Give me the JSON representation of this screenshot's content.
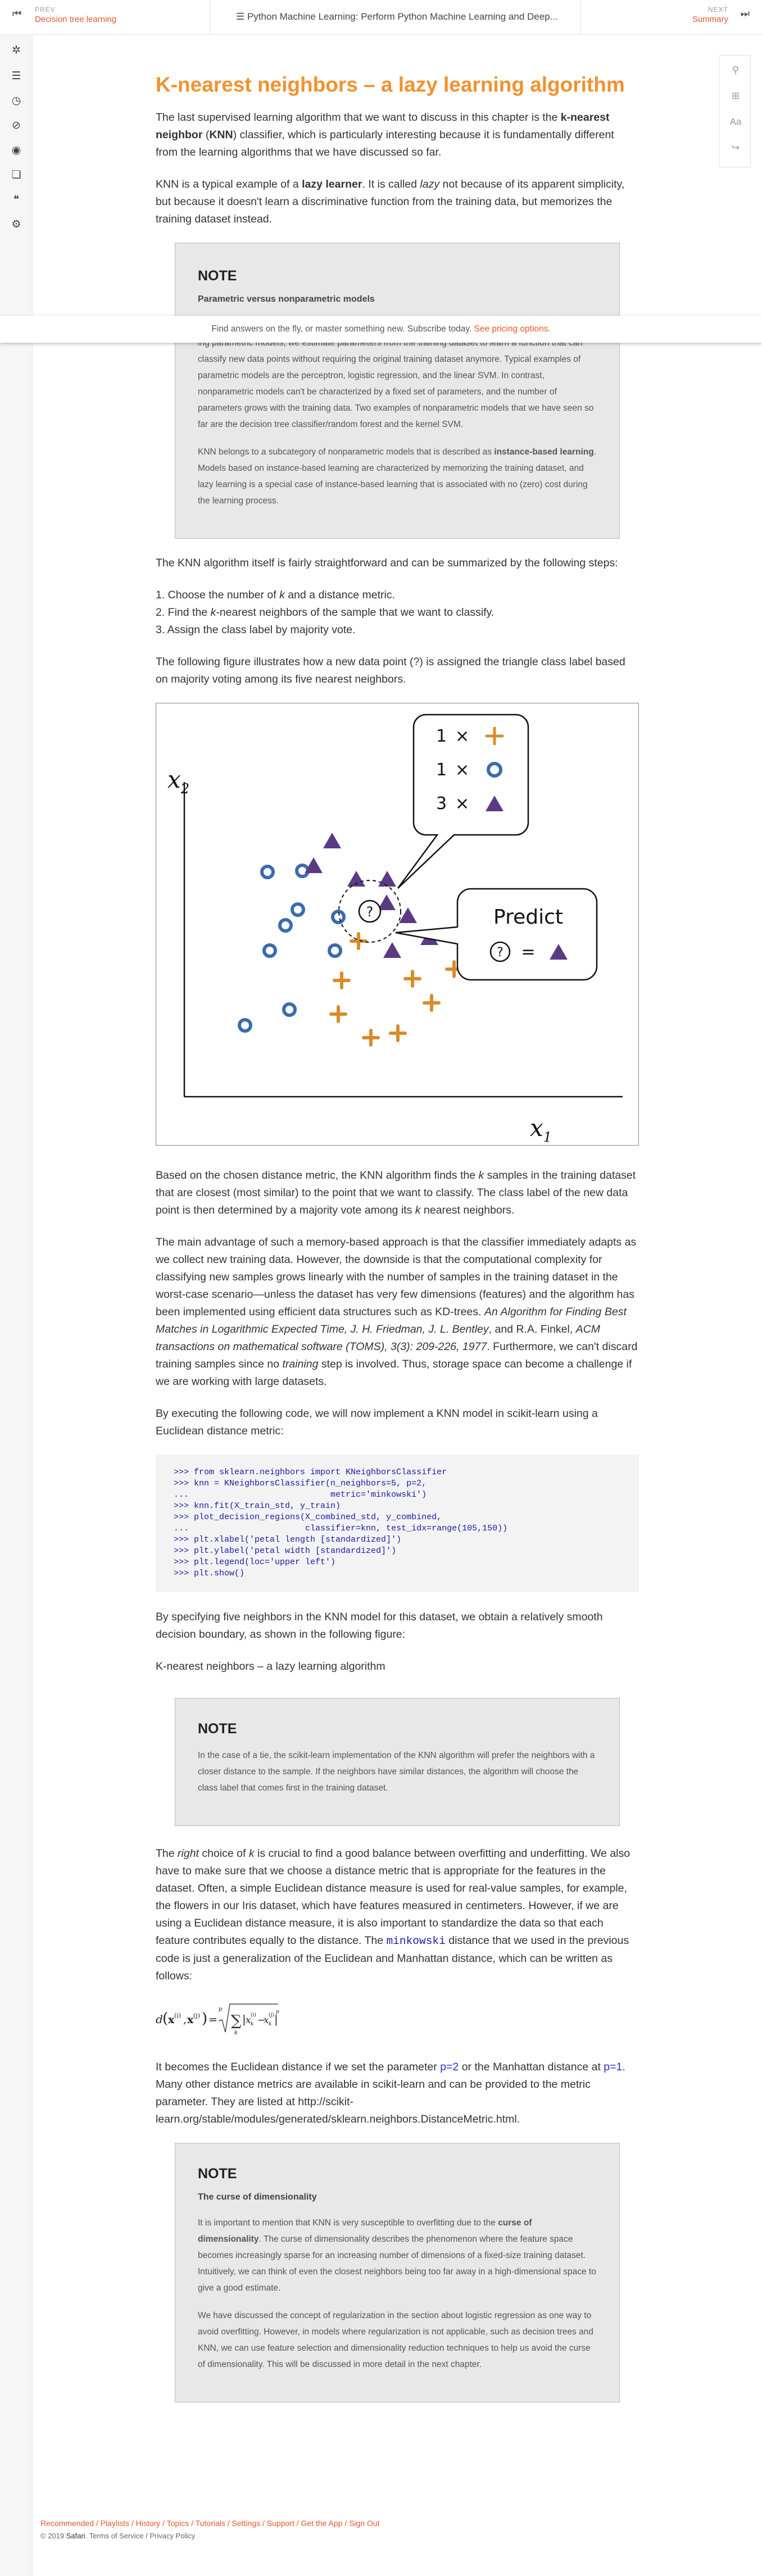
{
  "topbar": {
    "prev_small": "PREV",
    "prev_link": "Decision tree learning",
    "title": "Python Machine Learning: Perform Python Machine Learning and Deep...",
    "next_small": "NEXT",
    "next_link": "Summary"
  },
  "banner": {
    "text": "Find answers on the fly, or master something new. Subscribe today. ",
    "link": "See pricing options."
  },
  "heading": "K-nearest neighbors – a lazy learning algorithm",
  "p1a": "The last supervised learning algorithm that we want to discuss in this chapter is the ",
  "p1b": "k-nearest neighbor",
  "p1c": " (",
  "p1d": "KNN",
  "p1e": ") classifier, which is particularly interesting because it is fundamentally different from the learning algorithms that we have discussed so far.",
  "p2a": "KNN is a typical example of a ",
  "p2b": "lazy learner",
  "p2c": ". It is called ",
  "p2d": "lazy",
  "p2e": " not because of its apparent simplicity, but because it doesn't learn a discriminative function from the training data, but memorizes the training dataset instead.",
  "note1": {
    "title": "NOTE",
    "subtitle": "Parametric versus nonparametric models",
    "p1": "ing parametric models, we estimate parameters from the training dataset to learn a function that can classify new data points without requiring the original training dataset anymore. Typical examples of parametric models are the perceptron, logistic regression, and the linear SVM. In contrast, nonparametric models can't be characterized by a fixed set of parameters, and the number of parameters grows with the training data. Two examples of nonparametric models that we have seen so far are the decision tree classifier/random forest and the kernel SVM.",
    "p2a": "KNN belongs to a subcategory of nonparametric models that is described as ",
    "p2b": "instance-based learning",
    "p2c": ". Models based on instance-based learning are characterized by memorizing the training dataset, and lazy learning is a special case of instance-based learning that is associated with no (zero) cost during the learning process."
  },
  "p3": "The KNN algorithm itself is fairly straightforward and can be summarized by the following steps:",
  "steps": [
    "1. Choose the number of ",
    "k",
    " and a distance metric.",
    "2. Find the ",
    "k",
    "-nearest neighbors of the sample that we want to classify.",
    "3. Assign the class label by majority vote."
  ],
  "p4": "The following figure illustrates how a new data point (?) is assigned the triangle class label based on majority voting among its five nearest neighbors.",
  "figure": {
    "x_label": "x",
    "x_sub": "1",
    "y_label": "x",
    "y_sub": "2",
    "legend": [
      {
        "count": "1",
        "symbol": "cross"
      },
      {
        "count": "1",
        "symbol": "circle"
      },
      {
        "count": "3",
        "symbol": "triangle"
      }
    ],
    "times": "×",
    "predict_title": "Predict",
    "predict_q": "?",
    "predict_eq": "=",
    "query": "?",
    "colors": {
      "circle": "#3b6bb0",
      "triangle": "#5b3a85",
      "cross": "#d98b2b"
    }
  },
  "p5a": "Based on the chosen distance metric, the KNN algorithm finds the ",
  "p5b": "k",
  "p5c": " samples in the training dataset that are closest (most similar) to the point that we want to classify. The class label of the new data point is then determined by a majority vote among its ",
  "p5d": "k",
  "p5e": " nearest neighbors.",
  "p6a": "The main advantage of such a memory-based approach is that the classifier immediately adapts as we collect new training data. However, the downside is that the computational complexity for classifying new samples grows linearly with the number of samples in the training dataset in the worst-case scenario—unless the dataset has very few dimensions (features) and the algorithm has been implemented using efficient data structures such as KD-trees. ",
  "p6b": "An Algorithm for Finding Best Matches in Logarithmic Expected Time, J. H. Friedman, J. L. Bentley",
  "p6c": ", and R.A. Finkel, ",
  "p6d": "ACM transactions on mathematical software (TOMS), 3(3): 209-226, 1977",
  "p6e": ". Furthermore, we can't discard training samples since no ",
  "p6f": "training",
  "p6g": " step is involved. Thus, storage space can become a challenge if we are working with large datasets.",
  "p7": "By executing the following code, we will now implement a KNN model in scikit-learn using a Euclidean distance metric:",
  "code": ">>> from sklearn.neighbors import KNeighborsClassifier\n>>> knn = KNeighborsClassifier(n_neighbors=5, p=2,\n...                            metric='minkowski')\n>>> knn.fit(X_train_std, y_train)\n>>> plot_decision_regions(X_combined_std, y_combined,\n...                       classifier=knn, test_idx=range(105,150))\n>>> plt.xlabel('petal length [standardized]')\n>>> plt.ylabel('petal width [standardized]')\n>>> plt.legend(loc='upper left')\n>>> plt.show()",
  "p8": "By specifying five neighbors in the KNN model for this dataset, we obtain a relatively smooth decision boundary, as shown in the following figure:",
  "p9": "K-nearest neighbors – a lazy learning algorithm",
  "note2": {
    "title": "NOTE",
    "p1": "In the case of a tie, the scikit-learn implementation of the KNN algorithm will prefer the neighbors with a closer distance to the sample. If the neighbors have similar distances, the algorithm will choose the class label that comes first in the training dataset."
  },
  "p10a": "The ",
  "p10b": "right",
  "p10c": " choice of ",
  "p10d": "k",
  "p10e": " is crucial to find a good balance between overfitting and underfitting. We also have to make sure that we choose a distance metric that is appropriate for the features in the dataset. Often, a simple Euclidean distance measure is used for real-value samples, for example, the flowers in our Iris dataset, which have features measured in centimeters. However, if we are using a Euclidean distance measure, it is also important to standardize the data so that each feature contributes equally to the distance. The ",
  "p10f": "minkowski",
  "p10g": " distance that we used in the previous code is just a generalization of the Euclidean and Manhattan distance, which can be written as follows:",
  "p11a": "It becomes the Euclidean distance if we set the parameter ",
  "p11b": "p=2",
  "p11c": " or the Manhattan distance at ",
  "p11d": "p=1",
  "p11e": ". Many other distance metrics are available in scikit-learn and can be provided to the metric parameter. They are listed at http://scikit-learn.org/stable/modules/generated/sklearn.neighbors.DistanceMetric.html.",
  "note3": {
    "title": "NOTE",
    "subtitle": "The curse of dimensionality",
    "p1a": "It is important to mention that KNN is very susceptible to overfitting due to the ",
    "p1b": "curse of dimensionality",
    "p1c": ". The curse of dimensionality describes the phenomenon where the feature space becomes increasingly sparse for an increasing number of dimensions of a fixed-size training dataset. Intuitively, we can think of even the closest neighbors being too far away in a high-dimensional space to give a good estimate.",
    "p2": "We have discussed the concept of regularization in the section about logistic regression as one way to avoid overfitting. However, in models where regularization is not applicable, such as decision trees and KNN, we can use feature selection and dimensionality reduction techniques to help us avoid the curse of dimensionality. This will be discussed in more detail in the next chapter."
  },
  "footer": {
    "links": "Recommended / Playlists / History / Topics / Tutorials / Settings / Support / Get the App / Sign Out",
    "copy": "© 2019 ",
    "brand": "Safari",
    "terms": ". Terms of Service / Privacy Policy"
  }
}
